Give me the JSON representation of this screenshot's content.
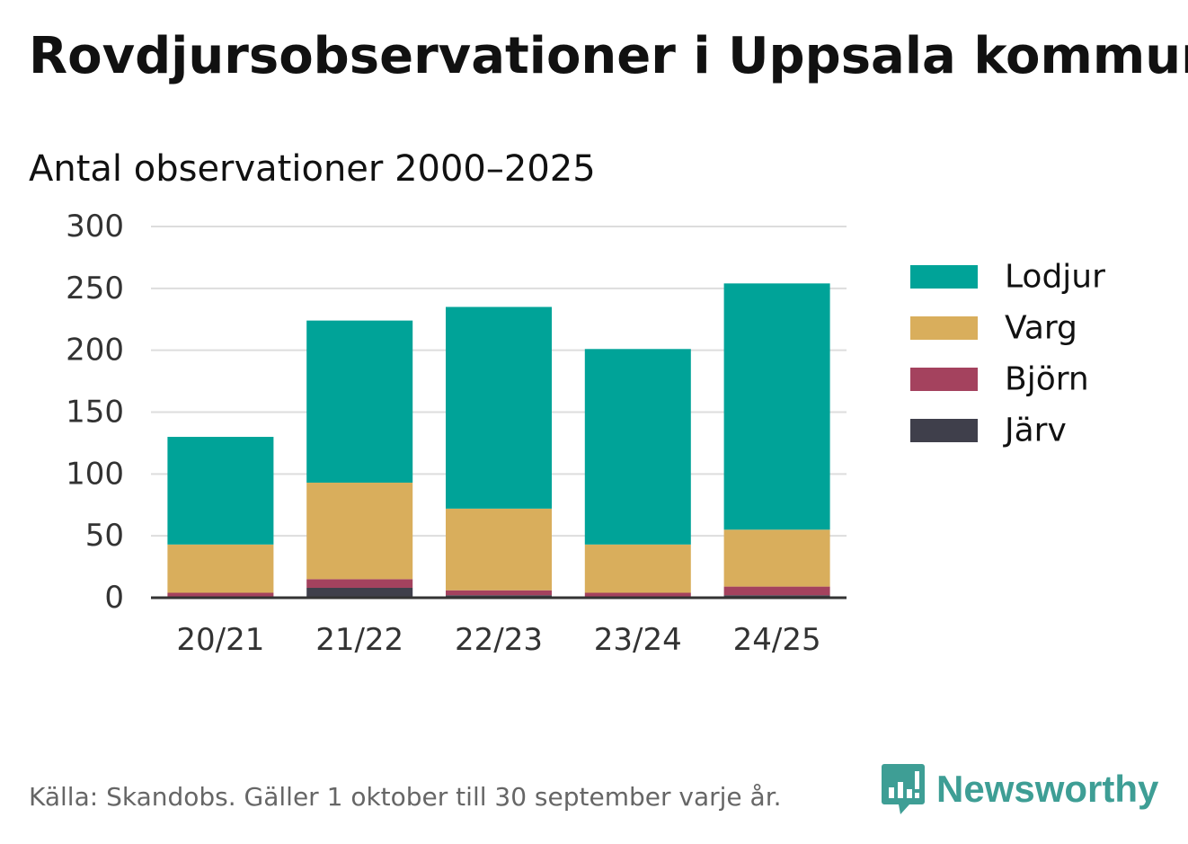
{
  "title": "Rovdjursobservationer i Uppsala kommun",
  "subtitle": "Antal observationer 2000–2025",
  "footer": {
    "source": "Källa: Skandobs. Gäller 1 oktober till 30 september varje år.",
    "brand": "Newsworthy",
    "brand_icon": "bar-chart-speech-bubble-icon",
    "brand_color": "#3e9e95"
  },
  "chart_data": {
    "type": "bar",
    "stacked": true,
    "categories": [
      "20/21",
      "21/22",
      "22/23",
      "23/24",
      "24/25"
    ],
    "series": [
      {
        "name": "Järv",
        "color": "#3f3f4b",
        "values": [
          1,
          8,
          2,
          1,
          2
        ]
      },
      {
        "name": "Björn",
        "color": "#a4425e",
        "values": [
          3,
          7,
          4,
          3,
          7
        ]
      },
      {
        "name": "Varg",
        "color": "#d9ae5c",
        "values": [
          39,
          78,
          66,
          39,
          46
        ]
      },
      {
        "name": "Lodjur",
        "color": "#00a398",
        "values": [
          87,
          131,
          163,
          158,
          199
        ]
      }
    ],
    "legend_order": [
      "Lodjur",
      "Varg",
      "Björn",
      "Järv"
    ],
    "ylim": [
      0,
      300
    ],
    "yticks": [
      0,
      50,
      100,
      150,
      200,
      250,
      300
    ],
    "grid": true,
    "legend_position": "right",
    "xlabel": "",
    "ylabel": ""
  }
}
